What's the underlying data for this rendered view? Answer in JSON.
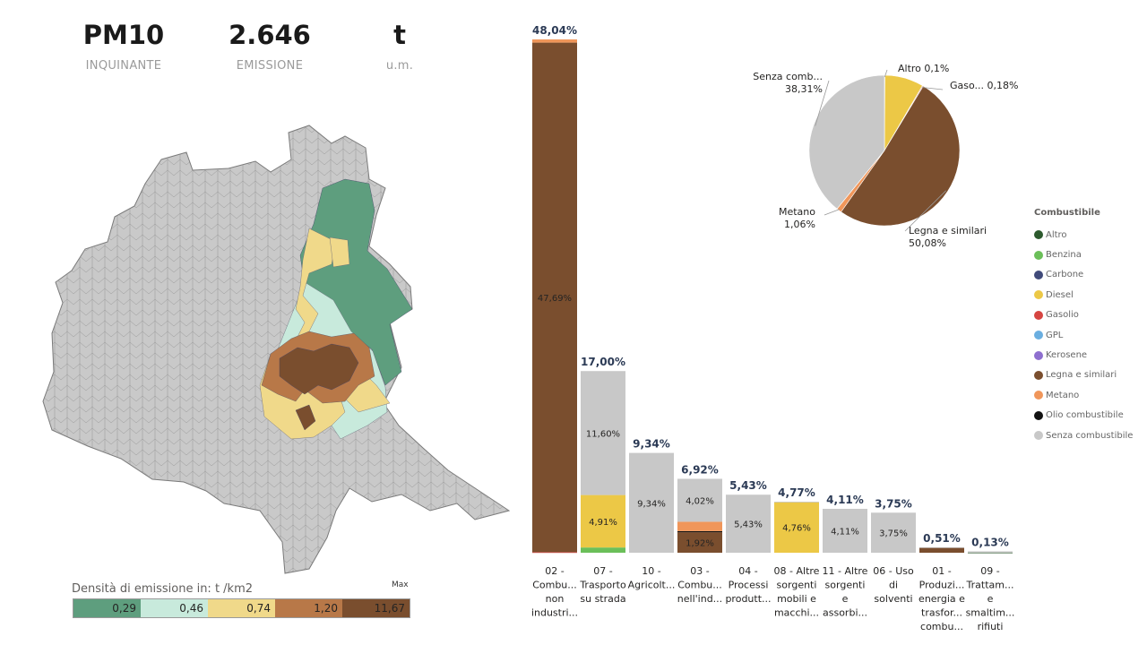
{
  "kpis": [
    {
      "value": "PM10",
      "label": "INQUINANTE"
    },
    {
      "value": "2.646",
      "label": "EMISSIONE"
    },
    {
      "value": "t",
      "label": "u.m."
    }
  ],
  "map_legend": {
    "title": "Densità di emissione in:  t /km2",
    "max_label": "Max",
    "bins": [
      {
        "label": "0,29",
        "color": "#5e9e7e"
      },
      {
        "label": "0,46",
        "color": "#c8eadc"
      },
      {
        "label": "0,74",
        "color": "#f0d98a"
      },
      {
        "label": "1,20",
        "color": "#b87848"
      },
      {
        "label": "11,67",
        "color": "#7a4e2e"
      }
    ]
  },
  "fuel_legend": {
    "title": "Combustibile",
    "items": [
      {
        "label": "Altro",
        "color": "#2d5a2e"
      },
      {
        "label": "Benzina",
        "color": "#6bbf59"
      },
      {
        "label": "Carbone",
        "color": "#404a7a"
      },
      {
        "label": "Diesel",
        "color": "#ecc846"
      },
      {
        "label": "Gasolio",
        "color": "#d64541"
      },
      {
        "label": "GPL",
        "color": "#6aaee0"
      },
      {
        "label": "Kerosene",
        "color": "#8e6fcf"
      },
      {
        "label": "Legna e similari",
        "color": "#7a4e2e"
      },
      {
        "label": "Metano",
        "color": "#f0965a"
      },
      {
        "label": "Olio combustibile",
        "color": "#111111"
      },
      {
        "label": "Senza combustibile",
        "color": "#c8c8c8"
      }
    ]
  },
  "chart_data": [
    {
      "type": "bar",
      "stacked": true,
      "categories": [
        "02 - Combu... non industri...",
        "07 - Trasporto su strada",
        "10 - Agricolt...",
        "03 - Combu... nell'ind...",
        "04 - Processi produtt...",
        "08 - Altre sorgenti mobili e macchi...",
        "11 - Altre sorgenti e assorbi...",
        "06 - Uso di solventi",
        "01 - Produzi... energia e trasfor... combu...",
        "09 - Trattam... e smaltim... rifiuti"
      ],
      "category_lines": [
        [
          "02 -",
          "Combu...",
          "non",
          "industri..."
        ],
        [
          "07 -",
          "Trasporto",
          "su strada"
        ],
        [
          "10 -",
          "Agricolt..."
        ],
        [
          "03 -",
          "Combu...",
          "nell'ind..."
        ],
        [
          "04 -",
          "Processi",
          "produtt..."
        ],
        [
          "08 - Altre",
          "sorgenti",
          "mobili e",
          "macchi..."
        ],
        [
          "11 - Altre",
          "sorgenti",
          "e",
          "assorbi..."
        ],
        [
          "06 - Uso",
          "di",
          "solventi"
        ],
        [
          "01 -",
          "Produzi...",
          "energia e",
          "trasfor...",
          "combu..."
        ],
        [
          "09 -",
          "Trattam...",
          "e",
          "smaltim...",
          "rifiuti"
        ]
      ],
      "totals": [
        48.04,
        17.0,
        9.34,
        6.92,
        5.43,
        4.77,
        4.11,
        3.75,
        0.51,
        0.13
      ],
      "total_labels": [
        "48,04%",
        "17,00%",
        "9,34%",
        "6,92%",
        "5,43%",
        "4,77%",
        "4,11%",
        "3,75%",
        "0,51%",
        "0,13%"
      ],
      "series": [
        {
          "name": "Benzina",
          "color": "#6bbf59",
          "values": [
            0,
            0.49,
            0,
            0,
            0,
            0,
            0,
            0,
            0,
            0
          ],
          "labels": [
            "",
            "",
            "",
            "",
            "",
            "",
            "",
            "",
            "",
            ""
          ]
        },
        {
          "name": "Diesel",
          "color": "#ecc846",
          "values": [
            0,
            4.91,
            0,
            0,
            0,
            4.76,
            0,
            0,
            0,
            0
          ],
          "labels": [
            "",
            "4,91%",
            "",
            "",
            "",
            "4,76%",
            "",
            "",
            "",
            ""
          ]
        },
        {
          "name": "Gasolio",
          "color": "#d64541",
          "values": [
            0.05,
            0,
            0,
            0,
            0,
            0,
            0,
            0,
            0,
            0
          ],
          "labels": [
            "",
            "",
            "",
            "",
            "",
            "",
            "",
            "",
            "",
            ""
          ]
        },
        {
          "name": "Legna e similari",
          "color": "#7a4e2e",
          "values": [
            47.69,
            0,
            0,
            1.92,
            0,
            0,
            0,
            0,
            0.49,
            0
          ],
          "labels": [
            "47,69%",
            "",
            "",
            "1,92%",
            "",
            "",
            "",
            "",
            "",
            ""
          ]
        },
        {
          "name": "Olio combustibile",
          "color": "#111111",
          "values": [
            0,
            0,
            0,
            0.1,
            0,
            0,
            0,
            0,
            0,
            0
          ],
          "labels": [
            "",
            "",
            "",
            "",
            "",
            "",
            "",
            "",
            "",
            ""
          ]
        },
        {
          "name": "Metano",
          "color": "#f0965a",
          "values": [
            0.3,
            0,
            0,
            0.88,
            0,
            0,
            0,
            0,
            0,
            0
          ],
          "labels": [
            "",
            "",
            "",
            "",
            "",
            "",
            "",
            "",
            "",
            ""
          ]
        },
        {
          "name": "Altro",
          "color": "#2d5a2e",
          "values": [
            0,
            0,
            0,
            0,
            0,
            0,
            0,
            0,
            0,
            0.02
          ],
          "labels": [
            "",
            "",
            "",
            "",
            "",
            "",
            "",
            "",
            "",
            ""
          ]
        },
        {
          "name": "Senza combustibile",
          "color": "#c8c8c8",
          "values": [
            0,
            11.6,
            9.34,
            4.02,
            5.43,
            0.01,
            4.11,
            3.75,
            0.02,
            0.11
          ],
          "labels": [
            "",
            "11,60%",
            "9,34%",
            "4,02%",
            "5,43%",
            "",
            "4,11%",
            "3,75%",
            "",
            ""
          ]
        }
      ],
      "ylim": [
        0,
        48.04
      ]
    },
    {
      "type": "pie",
      "slices": [
        {
          "name": "Altro",
          "value": 0.1,
          "label": "Altro 0,1%",
          "color": "#5cae6a"
        },
        {
          "name": "Diesel",
          "value": 8.17,
          "label": "",
          "color": "#ecc846"
        },
        {
          "name": "Gasolio",
          "value": 0.18,
          "label": "Gaso... 0,18%",
          "color": "#d64541"
        },
        {
          "name": "Legna e similari",
          "value": 50.08,
          "label": "Legna e similari 50,08%",
          "color": "#7a4e2e"
        },
        {
          "name": "Metano",
          "value": 1.06,
          "label": "Metano 1,06%",
          "color": "#f0965a"
        },
        {
          "name": "Senza combustibile",
          "value": 38.31,
          "label": "Senza comb... 38,31%",
          "color": "#c8c8c8"
        }
      ],
      "callouts": [
        {
          "lines": [
            "Altro 0,1%"
          ]
        },
        {
          "lines": [
            "Gaso... 0,18%"
          ]
        },
        {
          "lines": [
            "Legna e similari",
            "50,08%"
          ]
        },
        {
          "lines": [
            "Metano",
            "1,06%"
          ]
        },
        {
          "lines": [
            "Senza comb...",
            "38,31%"
          ]
        }
      ]
    }
  ]
}
